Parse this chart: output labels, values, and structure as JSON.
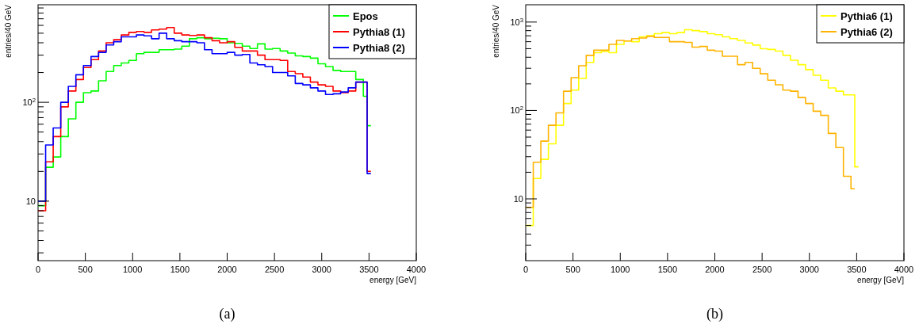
{
  "chart_data": [
    {
      "type": "histogram",
      "xlabel": "energy [GeV]",
      "ylabel": "entries/40 GeV",
      "annotations": [
        "(a)"
      ],
      "log": "y",
      "legend": "top right",
      "grid": false,
      "bins": [
        0,
        80,
        160,
        240,
        320,
        400,
        480,
        560,
        640,
        720,
        800,
        880,
        960,
        1040,
        1120,
        1200,
        1280,
        1360,
        1440,
        1520,
        1600,
        1680,
        1760,
        1840,
        1920,
        2000,
        2080,
        2160,
        2240,
        2320,
        2400,
        2480,
        2560,
        2640,
        2720,
        2800,
        2880,
        2960,
        3040,
        3120,
        3200,
        3280,
        3360,
        3440,
        3480,
        3520
      ],
      "series": [
        {
          "name": "Epos",
          "color": "#00ff00",
          "values": [
            9,
            22,
            28,
            45,
            68,
            100,
            125,
            130,
            165,
            205,
            235,
            250,
            265,
            310,
            320,
            320,
            340,
            340,
            345,
            370,
            440,
            450,
            440,
            445,
            440,
            400,
            395,
            370,
            350,
            390,
            345,
            350,
            330,
            315,
            295,
            290,
            280,
            245,
            230,
            210,
            205,
            205,
            170,
            115,
            58
          ]
        },
        {
          "name": "Pythia8 (1)",
          "color": "#ff0000",
          "values": [
            8,
            25,
            45,
            90,
            130,
            170,
            225,
            270,
            330,
            400,
            430,
            480,
            510,
            520,
            510,
            540,
            550,
            570,
            500,
            480,
            475,
            480,
            450,
            420,
            400,
            410,
            360,
            330,
            330,
            300,
            270,
            270,
            265,
            205,
            195,
            180,
            160,
            150,
            145,
            130,
            125,
            130,
            160,
            160,
            20
          ]
        },
        {
          "name": "Pythia8 (2)",
          "color": "#0000ff",
          "values": [
            10,
            37,
            55,
            100,
            145,
            190,
            235,
            290,
            320,
            380,
            410,
            460,
            460,
            480,
            470,
            440,
            500,
            440,
            420,
            410,
            410,
            400,
            340,
            310,
            310,
            320,
            300,
            305,
            250,
            240,
            230,
            200,
            200,
            185,
            155,
            150,
            140,
            130,
            120,
            122,
            127,
            140,
            160,
            160,
            19
          ]
        }
      ],
      "xlim": [
        0,
        4000
      ],
      "xticks": [
        0,
        500,
        1000,
        1500,
        2000,
        2500,
        3000,
        3500,
        4000
      ],
      "ylim": [
        2.5,
        970
      ],
      "yticks": [
        {
          "value": 3,
          "label": null
        },
        {
          "value": 4,
          "label": null
        },
        {
          "value": 5,
          "label": null
        },
        {
          "value": 6,
          "label": null
        },
        {
          "value": 7,
          "label": null
        },
        {
          "value": 8,
          "label": null
        },
        {
          "value": 9,
          "label": null
        },
        {
          "value": 10,
          "label": "10"
        },
        {
          "value": 20,
          "label": null
        },
        {
          "value": 30,
          "label": null
        },
        {
          "value": 40,
          "label": null
        },
        {
          "value": 50,
          "label": null
        },
        {
          "value": 60,
          "label": null
        },
        {
          "value": 70,
          "label": null
        },
        {
          "value": 80,
          "label": null
        },
        {
          "value": 90,
          "label": null
        },
        {
          "value": 100,
          "label": "10$^{2}$"
        },
        {
          "value": 200,
          "label": null
        },
        {
          "value": 300,
          "label": null
        },
        {
          "value": 400,
          "label": null
        },
        {
          "value": 500,
          "label": null
        },
        {
          "value": 600,
          "label": null
        },
        {
          "value": 700,
          "label": null
        },
        {
          "value": 800,
          "label": null
        },
        {
          "value": 900,
          "label": null
        }
      ]
    },
    {
      "type": "histogram",
      "xlabel": "energy [GeV]",
      "ylabel": "entries/40 GeV",
      "annotations": [
        "(b)"
      ],
      "log": "y",
      "legend": "top right",
      "grid": false,
      "bins": [
        0,
        80,
        160,
        240,
        320,
        400,
        480,
        560,
        640,
        720,
        800,
        880,
        960,
        1040,
        1120,
        1200,
        1280,
        1360,
        1440,
        1520,
        1600,
        1680,
        1760,
        1840,
        1920,
        2000,
        2080,
        2160,
        2240,
        2320,
        2400,
        2480,
        2560,
        2640,
        2720,
        2800,
        2880,
        2960,
        3040,
        3120,
        3200,
        3280,
        3360,
        3440,
        3480,
        3520
      ],
      "series": [
        {
          "name": "Pythia6 (1)",
          "color": "#ffff00",
          "values": [
            5,
            17,
            28,
            42,
            68,
            120,
            170,
            230,
            350,
            450,
            465,
            450,
            560,
            610,
            600,
            680,
            700,
            740,
            760,
            740,
            760,
            820,
            800,
            780,
            740,
            720,
            680,
            650,
            620,
            580,
            550,
            500,
            490,
            470,
            420,
            370,
            330,
            290,
            250,
            220,
            180,
            165,
            150,
            150,
            23
          ]
        },
        {
          "name": "Pythia6 (2)",
          "color": "#ffb300",
          "bins": [
            0,
            80,
            160,
            240,
            320,
            400,
            480,
            560,
            640,
            720,
            800,
            880,
            960,
            1040,
            1120,
            1200,
            1280,
            1360,
            1440,
            1520,
            1600,
            1680,
            1760,
            1840,
            1920,
            2000,
            2080,
            2160,
            2240,
            2320,
            2400,
            2480,
            2560,
            2640,
            2720,
            2800,
            2880,
            2960,
            3040,
            3120,
            3200,
            3280,
            3360,
            3440,
            3480
          ],
          "values": [
            8,
            26,
            45,
            68,
            94,
            165,
            235,
            320,
            420,
            480,
            480,
            560,
            620,
            610,
            650,
            660,
            690,
            670,
            670,
            600,
            600,
            590,
            520,
            530,
            480,
            470,
            410,
            410,
            330,
            350,
            300,
            260,
            220,
            195,
            170,
            165,
            140,
            120,
            98,
            88,
            55,
            38,
            18,
            13
          ]
        }
      ],
      "xlim": [
        0,
        4000
      ],
      "xticks": [
        0,
        500,
        1000,
        1500,
        2000,
        2500,
        3000,
        3500,
        4000
      ],
      "ylim": [
        2,
        1570
      ],
      "yticks": [
        {
          "value": 3,
          "label": null
        },
        {
          "value": 4,
          "label": null
        },
        {
          "value": 5,
          "label": null
        },
        {
          "value": 6,
          "label": null
        },
        {
          "value": 7,
          "label": null
        },
        {
          "value": 8,
          "label": null
        },
        {
          "value": 9,
          "label": null
        },
        {
          "value": 10,
          "label": "10"
        },
        {
          "value": 20,
          "label": null
        },
        {
          "value": 30,
          "label": null
        },
        {
          "value": 40,
          "label": null
        },
        {
          "value": 50,
          "label": null
        },
        {
          "value": 60,
          "label": null
        },
        {
          "value": 70,
          "label": null
        },
        {
          "value": 80,
          "label": null
        },
        {
          "value": 90,
          "label": null
        },
        {
          "value": 100,
          "label": "10$^{2}$"
        },
        {
          "value": 200,
          "label": null
        },
        {
          "value": 300,
          "label": null
        },
        {
          "value": 400,
          "label": null
        },
        {
          "value": 500,
          "label": null
        },
        {
          "value": 600,
          "label": null
        },
        {
          "value": 700,
          "label": null
        },
        {
          "value": 800,
          "label": null
        },
        {
          "value": 900,
          "label": null
        },
        {
          "value": 1000,
          "label": "10$^{3}$"
        }
      ]
    }
  ]
}
